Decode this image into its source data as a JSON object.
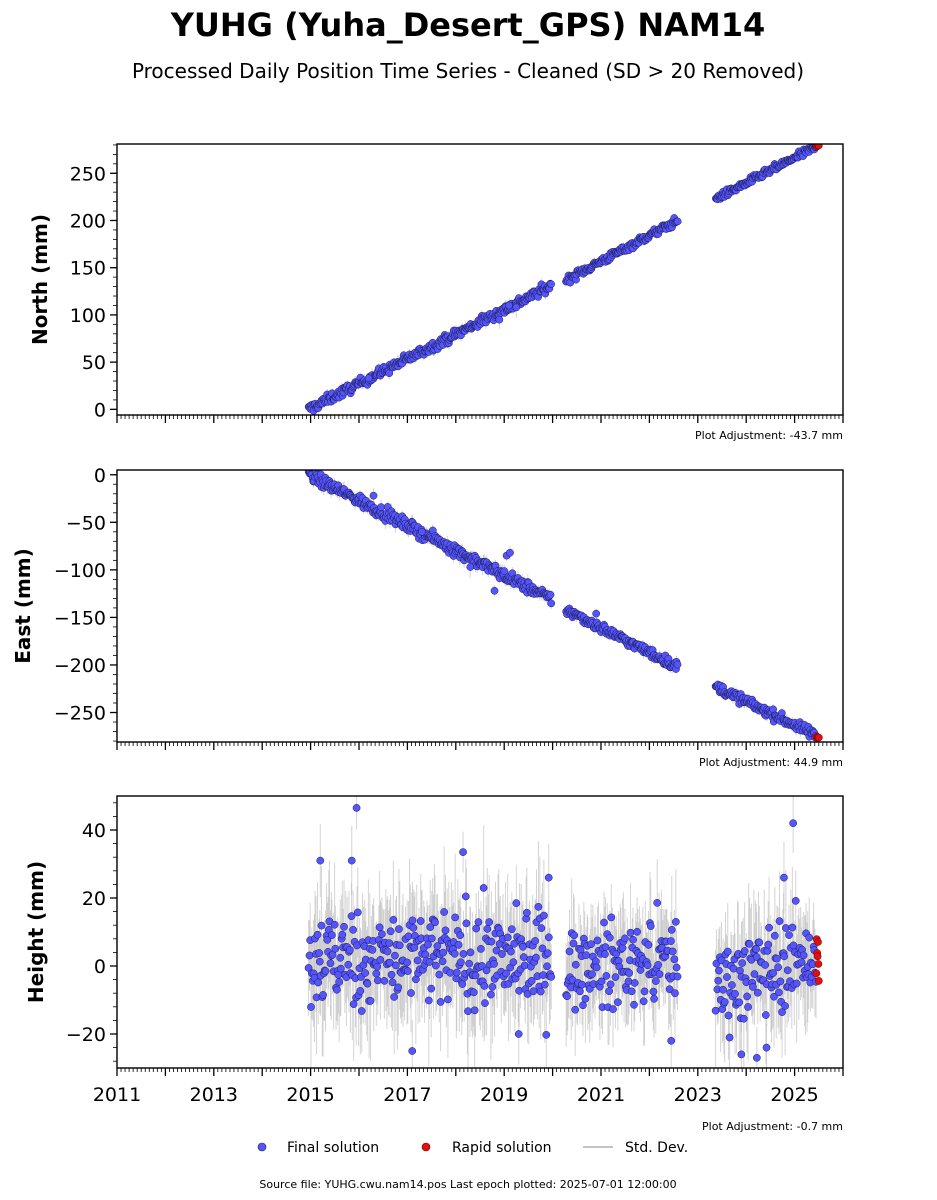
{
  "title": "YUHG (Yuha_Desert_GPS) NAM14",
  "subtitle": "Processed Daily Position Time Series - Cleaned (SD > 20 Removed)",
  "footer": "Source file: YUHG.cwu.nam14.pos  Last epoch plotted: 2025-07-01 12:00:00",
  "legend": {
    "final": "Final solution",
    "rapid": "Rapid solution",
    "std": "Std. Dev."
  },
  "colors": {
    "final": "#5555ff",
    "final_edge": "#1a1a4a",
    "rapid": "#e01010",
    "std": "#b0b0b0"
  },
  "chart_data": [
    {
      "type": "scatter",
      "ylabel": "North (mm)",
      "adjustment": "Plot Adjustment: -43.7 mm",
      "xlim": [
        2011.0,
        2026.0
      ],
      "ylim": [
        -6,
        281
      ],
      "yticks": [
        0,
        50,
        100,
        150,
        200,
        250
      ],
      "final_segments": [
        {
          "x0": 2014.96,
          "x1": 2019.97,
          "y0": 0,
          "y1": 131,
          "noise": 2.5
        },
        {
          "x0": 2020.28,
          "x1": 2022.58,
          "y0": 137,
          "y1": 200,
          "noise": 2.0
        },
        {
          "x0": 2023.37,
          "x1": 2025.44,
          "y0": 223,
          "y1": 278,
          "noise": 1.8
        }
      ],
      "rapid": {
        "x0": 2025.45,
        "x1": 2025.5,
        "y": 279
      },
      "outliers": [
        [
          2018.9,
          95
        ],
        [
          2019.1,
          110
        ],
        [
          2019.25,
          108
        ],
        [
          2016.2,
          33
        ]
      ]
    },
    {
      "type": "scatter",
      "ylabel": "East (mm)",
      "adjustment": "Plot Adjustment: 44.9 mm",
      "xlim": [
        2011.0,
        2026.0
      ],
      "ylim": [
        -281,
        5
      ],
      "yticks": [
        0,
        -50,
        -100,
        -150,
        -200,
        -250
      ],
      "final_segments": [
        {
          "x0": 2014.96,
          "x1": 2019.97,
          "y0": 0,
          "y1": -131,
          "noise": 3.0
        },
        {
          "x0": 2020.28,
          "x1": 2022.58,
          "y0": -142,
          "y1": -202,
          "noise": 2.5
        },
        {
          "x0": 2023.37,
          "x1": 2025.44,
          "y0": -223,
          "y1": -274,
          "noise": 2.5
        }
      ],
      "rapid": {
        "x0": 2025.45,
        "x1": 2025.5,
        "y": -276
      },
      "outliers": [
        [
          2018.8,
          -122
        ],
        [
          2019.05,
          -85
        ],
        [
          2019.12,
          -82
        ],
        [
          2017.3,
          -60
        ],
        [
          2016.3,
          -22
        ],
        [
          2018.3,
          -97
        ],
        [
          2020.9,
          -146
        ]
      ]
    },
    {
      "type": "scatter",
      "ylabel": "Height (mm)",
      "adjustment": "Plot Adjustment: -0.7 mm",
      "xlim": [
        2011.0,
        2026.0
      ],
      "ylim": [
        -30,
        50
      ],
      "yticks": [
        -20,
        0,
        20,
        40
      ],
      "xticks": [
        2011,
        2013,
        2015,
        2017,
        2019,
        2021,
        2023,
        2025
      ],
      "final_segments": [
        {
          "x0": 2014.96,
          "x1": 2019.97,
          "y0": 2,
          "y1": 2,
          "noise": 7
        },
        {
          "x0": 2020.28,
          "x1": 2022.58,
          "y0": -1,
          "y1": 2,
          "noise": 6
        },
        {
          "x0": 2023.37,
          "x1": 2025.44,
          "y0": -5,
          "y1": 3,
          "noise": 6.5
        }
      ],
      "rapid": {
        "x0": 2025.45,
        "x1": 2025.5,
        "y": 2,
        "spread": 7
      },
      "outliers": [
        [
          2015.95,
          46.5
        ],
        [
          2015.85,
          31
        ],
        [
          2015.2,
          31
        ],
        [
          2018.15,
          33.5
        ],
        [
          2019.92,
          26
        ],
        [
          2024.97,
          42
        ],
        [
          2024.78,
          26
        ],
        [
          2017.1,
          -25
        ],
        [
          2019.3,
          -20
        ],
        [
          2022.45,
          -22
        ],
        [
          2024.22,
          -27
        ],
        [
          2024.42,
          -24
        ],
        [
          2023.9,
          -26
        ]
      ]
    }
  ]
}
